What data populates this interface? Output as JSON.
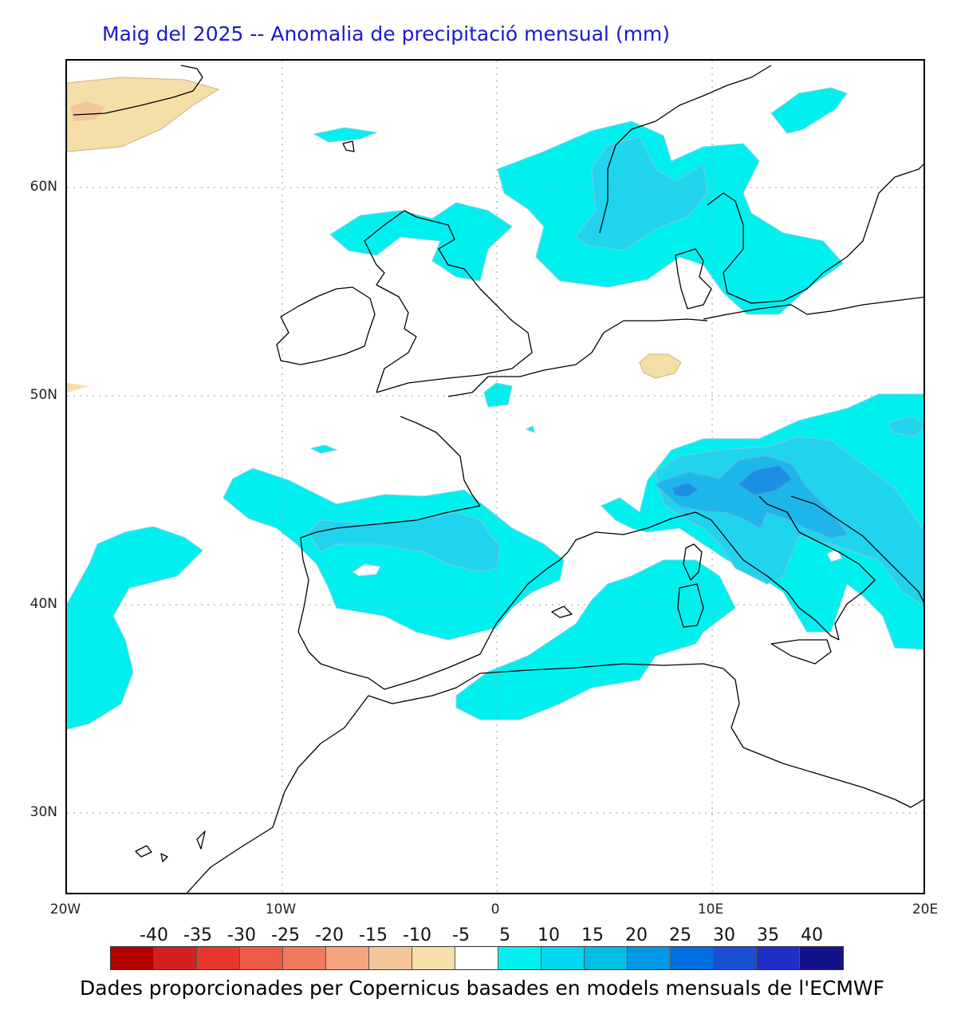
{
  "title": "Maig del 2025 -- Anomalia de precipitació mensual (mm)",
  "credit": "Dades proporcionades per Copernicus basades en models mensuals de l'ECMWF",
  "lat_labels": [
    "60N",
    "50N",
    "40N",
    "30N"
  ],
  "lon_labels": [
    "20W",
    "10W",
    "0",
    "10E",
    "20E"
  ],
  "legend": {
    "ticks": [
      "-40",
      "-35",
      "-30",
      "-25",
      "-20",
      "-15",
      "-10",
      "-5",
      "5",
      "10",
      "15",
      "20",
      "25",
      "30",
      "35",
      "40"
    ],
    "colors": [
      "#b30000",
      "#d42020",
      "#e8382b",
      "#ef5a45",
      "#f27a5c",
      "#f5a27e",
      "#f3c79a",
      "#f5dfa8",
      "#ffffff",
      "#00f0f0",
      "#00d7f0",
      "#00bde8",
      "#0097e6",
      "#0070e0",
      "#1a4fd8",
      "#1f2fc8",
      "#12128a"
    ]
  },
  "colors": {
    "title": "#1a1acc",
    "positive_5": "#00f0f0",
    "positive_10": "#20d4ee",
    "positive_15": "#1cb6ea",
    "positive_20": "#1c8fe4",
    "negative_5": "#f5dfa8",
    "negative_10": "#f3c79a"
  }
}
